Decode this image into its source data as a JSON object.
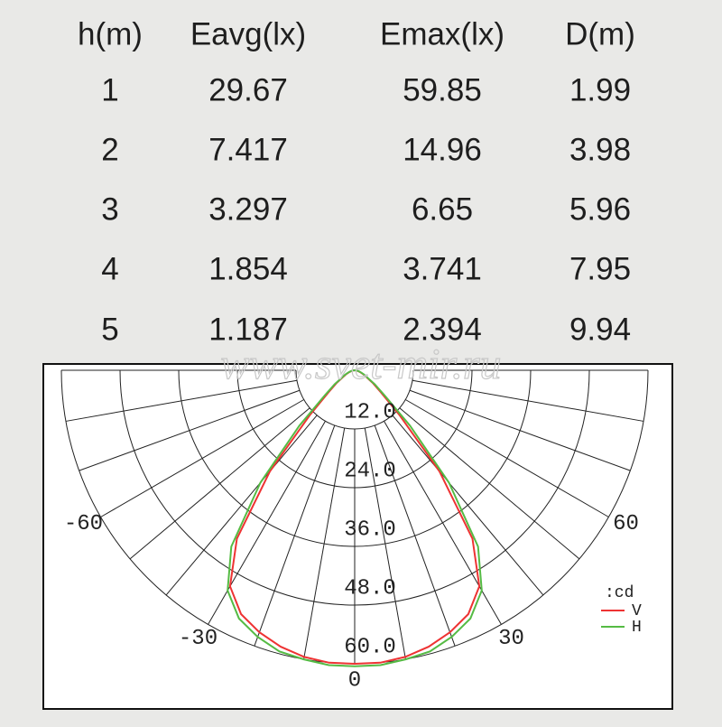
{
  "table": {
    "header": [
      "h(m)",
      "Eavg(lx)",
      "Emax(lx)",
      "D(m)"
    ],
    "rows": [
      [
        1,
        29.67,
        59.85,
        1.99
      ],
      [
        2,
        7.417,
        14.96,
        3.98
      ],
      [
        3,
        3.297,
        6.65,
        5.96
      ],
      [
        4,
        1.854,
        3.741,
        7.95
      ],
      [
        5,
        1.187,
        2.394,
        9.94
      ]
    ]
  },
  "watermark": "www.svet-mir.ru",
  "chart_data": {
    "type": "polar",
    "unit_label": ":cd",
    "x": [
      -90,
      -85,
      -80,
      -75,
      -70,
      -65,
      -60,
      -55,
      -50,
      -45,
      -40,
      -35,
      -30,
      -25,
      -20,
      -15,
      -10,
      -5,
      0,
      5,
      10,
      15,
      20,
      25,
      30,
      35,
      40,
      45,
      50,
      55,
      60,
      65,
      70,
      75,
      80,
      85,
      90
    ],
    "series": [
      {
        "name": "V",
        "color": "#ee3333",
        "values": [
          0,
          0.3,
          0.5,
          0.8,
          1.3,
          2,
          2.8,
          4.5,
          7,
          13,
          27,
          42,
          51,
          55,
          57,
          58.5,
          59.5,
          60,
          60,
          60,
          59.5,
          58.5,
          57,
          55,
          51,
          42,
          27,
          13,
          7,
          4.5,
          2.8,
          2,
          1.3,
          0.8,
          0.5,
          0.3,
          0
        ]
      },
      {
        "name": "H",
        "color": "#55bb44",
        "values": [
          0,
          0.3,
          0.6,
          1,
          1.5,
          2.2,
          3,
          5,
          8,
          16,
          30,
          44,
          52,
          56,
          58,
          59.5,
          60,
          60.5,
          60.5,
          60.5,
          60,
          59.5,
          58,
          56,
          52,
          44,
          30,
          16,
          8,
          5,
          3,
          2.2,
          1.5,
          1,
          0.6,
          0.3,
          0
        ]
      }
    ],
    "rlim": [
      0,
      60
    ],
    "rticks": [
      {
        "value": 12,
        "label": "12.0"
      },
      {
        "value": 24,
        "label": "24.0"
      },
      {
        "value": 36,
        "label": "36.0"
      },
      {
        "value": 48,
        "label": "48.0"
      },
      {
        "value": 60,
        "label": "60.0"
      }
    ],
    "angle_ticks": [
      -60,
      60,
      -30,
      30,
      0
    ]
  }
}
